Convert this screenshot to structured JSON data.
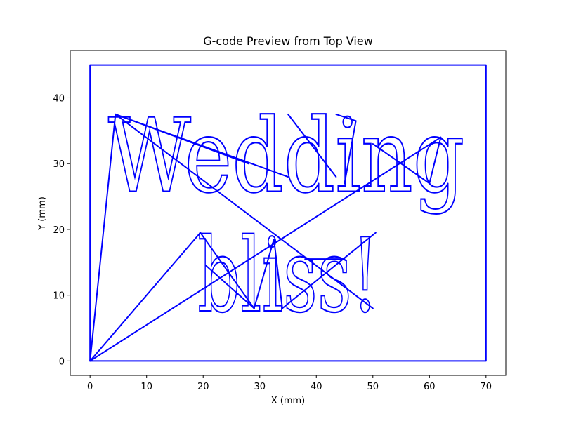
{
  "chart_data": {
    "type": "line",
    "title": "G-code Preview from Top View",
    "xlabel": "X (mm)",
    "ylabel": "Y (mm)",
    "xlim": [
      -3.5,
      73.5
    ],
    "ylim": [
      -2.2,
      47.2
    ],
    "xticks": [
      0,
      10,
      20,
      30,
      40,
      50,
      60,
      70
    ],
    "yticks": [
      0,
      10,
      20,
      30,
      40
    ],
    "grid": false,
    "color": "#0000ff",
    "series": [
      {
        "role": "border",
        "x": [
          0,
          0,
          70,
          70,
          0
        ],
        "y": [
          0,
          45,
          45,
          0,
          0
        ]
      },
      {
        "role": "travel",
        "x": [
          0,
          4.5
        ],
        "y": [
          0,
          37.5
        ]
      },
      {
        "role": "travel",
        "x": [
          4.5,
          28
        ],
        "y": [
          37.5,
          30
        ]
      },
      {
        "role": "travel",
        "x": [
          4.5,
          35
        ],
        "y": [
          37.5,
          28
        ]
      },
      {
        "role": "travel",
        "x": [
          4.5,
          50
        ],
        "y": [
          37.5,
          8
        ]
      },
      {
        "role": "travel",
        "x": [
          0,
          19.5
        ],
        "y": [
          0,
          19.5
        ]
      },
      {
        "role": "travel",
        "x": [
          0,
          62
        ],
        "y": [
          0,
          34
        ]
      },
      {
        "role": "travel",
        "x": [
          19.5,
          29
        ],
        "y": [
          19.5,
          8
        ]
      },
      {
        "role": "travel",
        "x": [
          20.5,
          29
        ],
        "y": [
          14.5,
          8
        ]
      },
      {
        "role": "travel",
        "x": [
          29,
          32.5
        ],
        "y": [
          8,
          18.5
        ]
      },
      {
        "role": "travel",
        "x": [
          32.5,
          34
        ],
        "y": [
          18.5,
          8
        ]
      },
      {
        "role": "travel",
        "x": [
          34,
          50.5
        ],
        "y": [
          8,
          19.5
        ]
      },
      {
        "role": "travel",
        "x": [
          35,
          43.5
        ],
        "y": [
          37.5,
          28
        ]
      },
      {
        "role": "travel",
        "x": [
          43.5,
          47
        ],
        "y": [
          37.5,
          36.5
        ]
      },
      {
        "role": "travel",
        "x": [
          47,
          45
        ],
        "y": [
          36.5,
          27
        ]
      },
      {
        "role": "travel",
        "x": [
          50,
          60
        ],
        "y": [
          33,
          27
        ]
      },
      {
        "role": "travel",
        "x": [
          62,
          60
        ],
        "y": [
          34,
          27
        ]
      },
      {
        "role": "travel",
        "x": [
          38,
          45
        ],
        "y": [
          15.5,
          15.5
        ]
      }
    ],
    "text_paths": [
      {
        "text": "Wedding",
        "x": 3.2,
        "y": 25.8,
        "size_mm": 15.5,
        "width_mm": 63.0
      },
      {
        "text": "bliss!",
        "x": 19.0,
        "y": 7.6,
        "size_mm": 15.5,
        "width_mm": 32.0
      }
    ]
  }
}
